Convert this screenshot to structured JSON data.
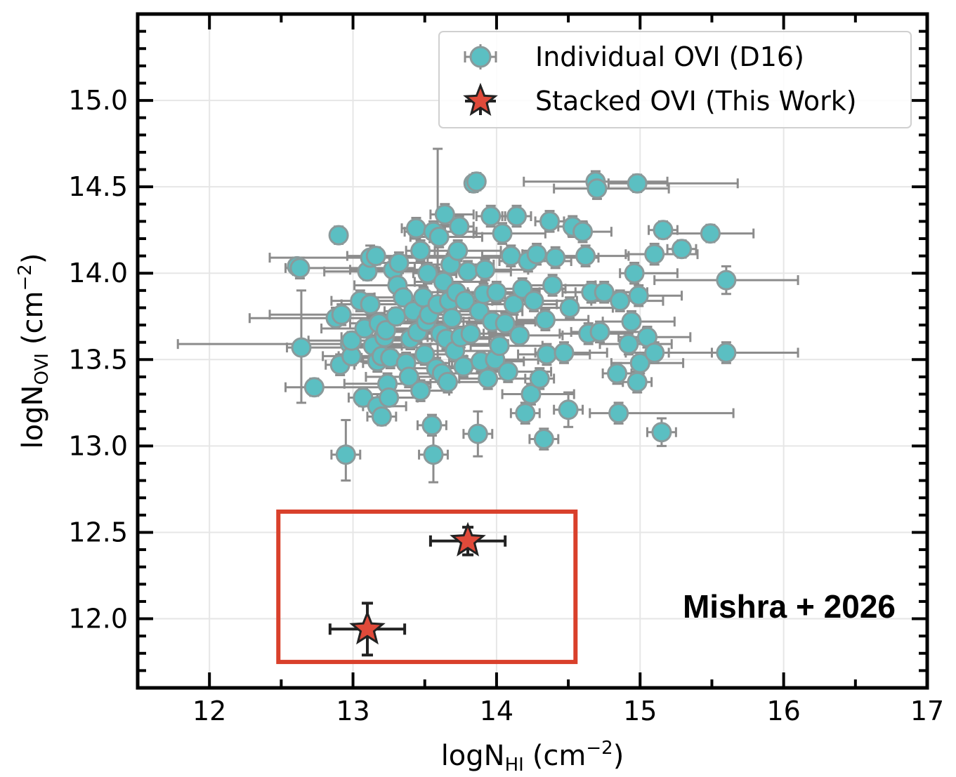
{
  "chart_data": {
    "type": "scatter",
    "xlabel": {
      "main": "logN",
      "sub": "HI",
      "unit": "(cm",
      "exp": "−2",
      "close": ")"
    },
    "ylabel": {
      "main": "logN",
      "sub": "OVI",
      "unit": "(cm",
      "exp": "−2",
      "close": ")"
    },
    "xlim": [
      11.5,
      17
    ],
    "ylim": [
      11.6,
      15.5
    ],
    "xticks": [
      "12",
      "13",
      "14",
      "15",
      "16",
      "17"
    ],
    "yticks": [
      "12.0",
      "12.5",
      "13.0",
      "13.5",
      "14.0",
      "14.5",
      "15.0"
    ],
    "grid": true,
    "legend": {
      "position": "top-right",
      "entries": [
        "Individual OVI (D16)",
        "Stacked OVI (This Work)"
      ]
    },
    "annotation": "Mishra + 2026",
    "highlight_box": {
      "x": [
        12.48,
        14.55
      ],
      "y": [
        11.75,
        12.62
      ],
      "color": "#d9402b"
    },
    "colors": {
      "individual": "#5bbfc2",
      "individual_edge": "#8a9a9b",
      "errorbar": "#8c8c8c",
      "stacked": "#e04a3a",
      "stacked_edge": "#222222"
    },
    "series": [
      {
        "name": "Individual OVI (D16)",
        "marker": "circle",
        "points": [
          [
            12.61,
            14.04,
            0.05,
            0.05,
            0.05,
            0.05
          ],
          [
            12.63,
            14.03,
            0.1,
            0.8,
            0.06,
            0.06
          ],
          [
            12.64,
            13.57,
            0.1,
            0.9,
            0.32,
            0.33
          ],
          [
            12.73,
            13.34,
            0.2,
            0.5,
            0.05,
            0.05
          ],
          [
            12.9,
            14.22,
            0.05,
            0.05,
            0.05,
            0.05
          ],
          [
            12.88,
            13.74,
            0.6,
            0.5,
            0.06,
            0.06
          ],
          [
            12.92,
            13.76,
            0.5,
            0.6,
            0.06,
            0.06
          ],
          [
            12.91,
            13.47,
            0.1,
            0.1,
            0.06,
            0.06
          ],
          [
            12.95,
            12.95,
            0.1,
            0.1,
            0.15,
            0.2
          ],
          [
            12.98,
            13.59,
            1.2,
            1.1,
            0.06,
            0.06
          ],
          [
            12.99,
            13.52,
            0.2,
            0.3,
            0.05,
            0.05
          ],
          [
            12.99,
            13.61,
            0.3,
            0.4,
            0.05,
            0.05
          ],
          [
            13.05,
            13.84,
            0.2,
            0.3,
            0.06,
            0.06
          ],
          [
            13.07,
            13.28,
            0.1,
            0.2,
            0.05,
            0.05
          ],
          [
            13.08,
            13.68,
            0.3,
            0.4,
            0.05,
            0.05
          ],
          [
            13.1,
            14.01,
            0.3,
            0.4,
            0.05,
            0.05
          ],
          [
            13.12,
            13.82,
            0.2,
            0.3,
            0.06,
            0.06
          ],
          [
            13.12,
            14.09,
            0.7,
            1.3,
            0.07,
            0.07
          ],
          [
            13.14,
            13.58,
            0.15,
            0.2,
            0.06,
            0.06
          ],
          [
            13.16,
            14.1,
            0.2,
            0.5,
            0.05,
            0.05
          ],
          [
            13.17,
            13.23,
            0.1,
            0.2,
            0.07,
            0.07
          ],
          [
            13.17,
            13.49,
            0.15,
            0.2,
            0.06,
            0.06
          ],
          [
            13.18,
            13.71,
            0.2,
            0.5,
            0.06,
            0.06
          ],
          [
            13.2,
            13.17,
            0.1,
            0.1,
            0.05,
            0.05
          ],
          [
            13.2,
            13.52,
            0.3,
            0.3,
            0.05,
            0.05
          ],
          [
            13.22,
            13.63,
            0.3,
            0.3,
            0.05,
            0.05
          ],
          [
            13.23,
            13.67,
            0.2,
            0.2,
            0.06,
            0.06
          ],
          [
            13.24,
            13.36,
            0.3,
            0.3,
            0.06,
            0.06
          ],
          [
            13.25,
            13.28,
            0.2,
            0.2,
            0.05,
            0.05
          ],
          [
            13.26,
            13.51,
            0.2,
            0.2,
            0.06,
            0.06
          ],
          [
            13.28,
            14.02,
            0.3,
            0.3,
            0.06,
            0.06
          ],
          [
            13.3,
            13.75,
            0.2,
            0.2,
            0.05,
            0.05
          ],
          [
            13.31,
            13.93,
            0.3,
            0.2,
            0.06,
            0.06
          ],
          [
            13.32,
            14.06,
            0.2,
            0.2,
            0.06,
            0.06
          ],
          [
            13.35,
            13.86,
            0.2,
            0.2,
            0.05,
            0.05
          ],
          [
            13.37,
            13.48,
            0.3,
            0.3,
            0.06,
            0.06
          ],
          [
            13.39,
            13.4,
            0.3,
            0.3,
            0.06,
            0.06
          ],
          [
            13.4,
            13.62,
            0.2,
            0.3,
            0.06,
            0.06
          ],
          [
            13.42,
            13.78,
            0.2,
            0.3,
            0.06,
            0.06
          ],
          [
            13.44,
            14.26,
            0.1,
            0.2,
            0.06,
            0.06
          ],
          [
            13.45,
            13.66,
            0.2,
            0.3,
            0.06,
            0.06
          ],
          [
            13.47,
            14.13,
            0.1,
            0.1,
            0.06,
            0.06
          ],
          [
            13.47,
            13.32,
            0.2,
            0.2,
            0.06,
            0.06
          ],
          [
            13.49,
            13.86,
            0.2,
            0.3,
            0.06,
            0.06
          ],
          [
            13.5,
            13.53,
            0.2,
            0.2,
            0.06,
            0.06
          ],
          [
            13.51,
            13.72,
            0.2,
            0.3,
            0.06,
            0.06
          ],
          [
            13.52,
            14.0,
            0.1,
            0.2,
            0.06,
            0.06
          ],
          [
            13.53,
            13.76,
            0.2,
            0.3,
            0.06,
            0.06
          ],
          [
            13.55,
            13.12,
            0.1,
            0.1,
            0.06,
            0.06
          ],
          [
            13.56,
            12.95,
            0.1,
            0.1,
            0.16,
            0.16
          ],
          [
            13.56,
            14.24,
            0.2,
            0.3,
            0.06,
            0.06
          ],
          [
            13.58,
            13.45,
            0.2,
            0.3,
            0.06,
            0.06
          ],
          [
            13.59,
            13.82,
            0.2,
            0.3,
            0.4,
            0.9
          ],
          [
            13.6,
            14.21,
            0.2,
            0.3,
            0.06,
            0.06
          ],
          [
            13.61,
            13.65,
            0.2,
            0.3,
            0.06,
            0.06
          ],
          [
            13.62,
            13.42,
            0.2,
            0.3,
            0.06,
            0.06
          ],
          [
            13.63,
            13.95,
            0.2,
            0.3,
            0.06,
            0.06
          ],
          [
            13.64,
            14.34,
            0.1,
            0.2,
            0.06,
            0.06
          ],
          [
            13.65,
            13.62,
            0.2,
            0.3,
            0.06,
            0.06
          ],
          [
            13.66,
            13.37,
            0.2,
            0.3,
            0.06,
            0.06
          ],
          [
            13.67,
            13.84,
            0.2,
            0.3,
            0.06,
            0.06
          ],
          [
            13.68,
            14.05,
            0.2,
            0.3,
            0.06,
            0.06
          ],
          [
            13.69,
            13.74,
            0.2,
            0.3,
            0.06,
            0.06
          ],
          [
            13.71,
            13.55,
            0.2,
            0.3,
            0.06,
            0.06
          ],
          [
            13.72,
            13.89,
            0.2,
            0.3,
            0.06,
            0.06
          ],
          [
            13.73,
            14.13,
            0.2,
            0.3,
            0.06,
            0.06
          ],
          [
            13.74,
            14.27,
            0.1,
            0.1,
            0.06,
            0.06
          ],
          [
            13.75,
            13.63,
            0.2,
            0.3,
            0.06,
            0.06
          ],
          [
            13.77,
            13.46,
            0.2,
            0.3,
            0.06,
            0.06
          ],
          [
            13.78,
            13.84,
            0.2,
            0.3,
            0.06,
            0.06
          ],
          [
            13.8,
            14.01,
            0.2,
            0.3,
            0.06,
            0.06
          ],
          [
            13.82,
            13.65,
            0.2,
            0.3,
            0.06,
            0.06
          ],
          [
            13.84,
            14.52,
            0.05,
            0.05,
            0.05,
            0.05
          ],
          [
            13.86,
            14.53,
            0.05,
            0.05,
            0.05,
            0.05
          ],
          [
            13.87,
            13.07,
            0.1,
            0.1,
            0.13,
            0.13
          ],
          [
            13.88,
            13.78,
            0.2,
            0.3,
            0.06,
            0.06
          ],
          [
            13.89,
            13.49,
            0.2,
            0.3,
            0.06,
            0.06
          ],
          [
            13.91,
            13.88,
            0.2,
            0.3,
            0.06,
            0.06
          ],
          [
            13.92,
            14.02,
            0.2,
            0.3,
            0.06,
            0.06
          ],
          [
            13.94,
            13.39,
            0.2,
            0.3,
            0.06,
            0.06
          ],
          [
            13.96,
            14.33,
            0.1,
            0.1,
            0.06,
            0.06
          ],
          [
            13.97,
            13.72,
            0.2,
            0.3,
            0.06,
            0.06
          ],
          [
            13.99,
            13.5,
            0.2,
            0.3,
            0.06,
            0.06
          ],
          [
            14.0,
            13.89,
            0.2,
            0.3,
            0.06,
            0.06
          ],
          [
            14.02,
            13.58,
            0.2,
            0.3,
            0.06,
            0.06
          ],
          [
            14.04,
            14.23,
            0.2,
            0.3,
            0.06,
            0.06
          ],
          [
            14.06,
            13.71,
            0.2,
            0.3,
            0.06,
            0.06
          ],
          [
            14.08,
            13.43,
            0.2,
            0.3,
            0.06,
            0.06
          ],
          [
            14.1,
            14.1,
            0.2,
            0.3,
            0.06,
            0.06
          ],
          [
            14.12,
            13.82,
            0.2,
            0.3,
            0.06,
            0.06
          ],
          [
            14.14,
            14.33,
            0.1,
            0.1,
            0.06,
            0.06
          ],
          [
            14.16,
            13.64,
            0.2,
            0.3,
            0.06,
            0.06
          ],
          [
            14.18,
            13.91,
            0.2,
            0.3,
            0.06,
            0.06
          ],
          [
            14.2,
            13.19,
            0.1,
            0.1,
            0.06,
            0.06
          ],
          [
            14.22,
            14.07,
            0.2,
            0.3,
            0.06,
            0.06
          ],
          [
            14.24,
            13.3,
            0.2,
            0.3,
            0.06,
            0.06
          ],
          [
            14.26,
            13.84,
            0.2,
            0.3,
            0.06,
            0.06
          ],
          [
            14.28,
            14.11,
            0.1,
            0.1,
            0.06,
            0.06
          ],
          [
            14.3,
            13.39,
            0.1,
            0.1,
            0.06,
            0.06
          ],
          [
            14.33,
            13.04,
            0.1,
            0.1,
            0.06,
            0.06
          ],
          [
            14.34,
            13.73,
            0.2,
            0.3,
            0.06,
            0.06
          ],
          [
            14.35,
            13.53,
            0.2,
            0.3,
            0.06,
            0.06
          ],
          [
            14.37,
            14.3,
            0.1,
            0.1,
            0.06,
            0.06
          ],
          [
            14.39,
            13.93,
            0.2,
            0.3,
            0.06,
            0.06
          ],
          [
            14.41,
            14.09,
            0.2,
            0.3,
            0.06,
            0.06
          ],
          [
            14.47,
            13.54,
            0.2,
            0.3,
            0.06,
            0.06
          ],
          [
            14.5,
            13.21,
            0.1,
            0.1,
            0.1,
            0.1
          ],
          [
            14.51,
            13.8,
            0.2,
            0.3,
            0.06,
            0.06
          ],
          [
            14.53,
            14.27,
            0.1,
            0.1,
            0.06,
            0.06
          ],
          [
            14.6,
            14.24,
            0.1,
            0.2,
            0.06,
            0.06
          ],
          [
            14.62,
            14.1,
            0.2,
            0.3,
            0.06,
            0.06
          ],
          [
            14.64,
            13.65,
            0.2,
            0.3,
            0.06,
            0.06
          ],
          [
            14.66,
            13.89,
            0.2,
            0.3,
            0.06,
            0.06
          ],
          [
            14.69,
            14.53,
            0.5,
            0.5,
            0.06,
            0.06
          ],
          [
            14.7,
            14.49,
            0.3,
            0.5,
            0.06,
            0.06
          ],
          [
            14.72,
            13.66,
            0.2,
            0.3,
            0.06,
            0.06
          ],
          [
            14.75,
            13.89,
            0.2,
            0.3,
            0.06,
            0.06
          ],
          [
            14.84,
            13.42,
            0.1,
            0.1,
            0.06,
            0.06
          ],
          [
            14.85,
            13.19,
            0.2,
            0.8,
            0.06,
            0.06
          ],
          [
            14.86,
            13.84,
            0.2,
            0.3,
            0.06,
            0.06
          ],
          [
            14.92,
            13.59,
            0.2,
            0.3,
            0.06,
            0.06
          ],
          [
            14.94,
            13.72,
            0.2,
            0.3,
            0.06,
            0.06
          ],
          [
            14.96,
            14.0,
            0.1,
            0.3,
            0.06,
            0.06
          ],
          [
            14.98,
            14.52,
            0.2,
            0.7,
            0.05,
            0.05
          ],
          [
            14.98,
            13.37,
            0.1,
            0.1,
            0.06,
            0.06
          ],
          [
            14.99,
            13.87,
            0.2,
            0.3,
            0.06,
            0.06
          ],
          [
            15.0,
            13.48,
            0.2,
            0.3,
            0.06,
            0.06
          ],
          [
            15.05,
            13.63,
            0.2,
            0.3,
            0.06,
            0.06
          ],
          [
            15.1,
            13.54,
            0.2,
            0.4,
            0.06,
            0.06
          ],
          [
            15.1,
            14.11,
            0.2,
            0.3,
            0.06,
            0.06
          ],
          [
            15.15,
            13.08,
            0.1,
            0.1,
            0.08,
            0.08
          ],
          [
            15.16,
            14.25,
            0.1,
            0.1,
            0.05,
            0.05
          ],
          [
            15.29,
            14.14,
            0.1,
            0.1,
            0.05,
            0.05
          ],
          [
            15.49,
            14.23,
            0.3,
            0.3,
            0.05,
            0.05
          ],
          [
            15.6,
            13.96,
            0.5,
            0.5,
            0.08,
            0.08
          ],
          [
            15.6,
            13.54,
            0.4,
            0.5,
            0.06,
            0.06
          ]
        ]
      },
      {
        "name": "Stacked OVI (This Work)",
        "marker": "star",
        "points": [
          [
            13.8,
            12.45,
            0.26,
            0.26,
            0.08,
            0.08
          ],
          [
            13.1,
            11.94,
            0.26,
            0.26,
            0.15,
            0.15
          ]
        ]
      }
    ]
  }
}
